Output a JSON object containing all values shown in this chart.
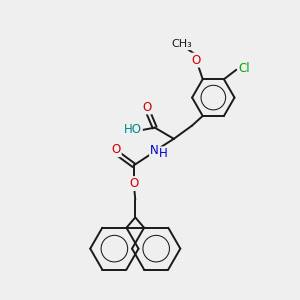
{
  "bg_color": "#efefef",
  "line_color": "#1a1a1a",
  "bond_lw": 1.4,
  "atom_colors": {
    "O": "#cc0000",
    "N": "#0000cc",
    "Cl": "#00aa00",
    "HO": "#008888",
    "C": "#1a1a1a"
  },
  "font_size": 8.5,
  "fig_size": [
    3.0,
    3.0
  ],
  "dpi": 100
}
